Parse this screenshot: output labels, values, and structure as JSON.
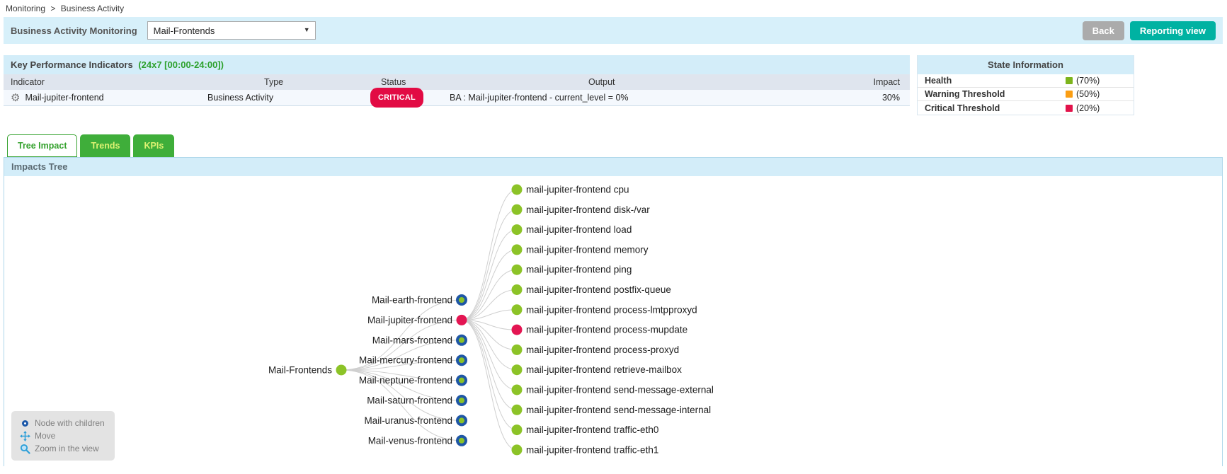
{
  "breadcrumb": {
    "item1": "Monitoring",
    "separator": ">",
    "item2": "Business Activity"
  },
  "toolbar": {
    "title": "Business Activity Monitoring",
    "selected_ba": "Mail-Frontends",
    "back_label": "Back",
    "reporting_label": "Reporting view"
  },
  "kpi_panel": {
    "title": "Key Performance Indicators",
    "period": "(24x7 [00:00-24:00])",
    "columns": [
      "Indicator",
      "Type",
      "Status",
      "Output",
      "Impact"
    ],
    "rows": [
      {
        "indicator": "Mail-jupiter-frontend",
        "type": "Business Activity",
        "status": "CRITICAL",
        "output": "BA : Mail-jupiter-frontend - current_level = 0%",
        "impact": "30%"
      }
    ]
  },
  "state_panel": {
    "title": "State Information",
    "rows": [
      {
        "label": "Health",
        "value": "(70%)",
        "color": "#7db41c"
      },
      {
        "label": "Warning Threshold",
        "value": "(50%)",
        "color": "#fb9e13"
      },
      {
        "label": "Critical Threshold",
        "value": "(20%)",
        "color": "#e2134b"
      }
    ]
  },
  "tabs": [
    {
      "label": "Tree Impact",
      "active": true
    },
    {
      "label": "Trends",
      "active": false
    },
    {
      "label": "KPIs",
      "active": false
    }
  ],
  "impacts_tree": {
    "title": "Impacts Tree",
    "status_colors": {
      "ok": "#8cc327",
      "critical": "#e31552",
      "ring": "#1f57a5"
    },
    "root": {
      "label": "Mail-Frontends",
      "status": "ok"
    },
    "children": [
      {
        "label": "Mail-earth-frontend",
        "status": "ok",
        "has_children": true,
        "expanded": false
      },
      {
        "label": "Mail-jupiter-frontend",
        "status": "critical",
        "has_children": true,
        "expanded": true
      },
      {
        "label": "Mail-mars-frontend",
        "status": "ok",
        "has_children": true,
        "expanded": false
      },
      {
        "label": "Mail-mercury-frontend",
        "status": "ok",
        "has_children": true,
        "expanded": false
      },
      {
        "label": "Mail-neptune-frontend",
        "status": "ok",
        "has_children": true,
        "expanded": false
      },
      {
        "label": "Mail-saturn-frontend",
        "status": "ok",
        "has_children": true,
        "expanded": false
      },
      {
        "label": "Mail-uranus-frontend",
        "status": "ok",
        "has_children": true,
        "expanded": false
      },
      {
        "label": "Mail-venus-frontend",
        "status": "ok",
        "has_children": true,
        "expanded": false
      }
    ],
    "expanded_leaves": [
      {
        "label": "mail-jupiter-frontend cpu",
        "status": "ok"
      },
      {
        "label": "mail-jupiter-frontend disk-/var",
        "status": "ok"
      },
      {
        "label": "mail-jupiter-frontend load",
        "status": "ok"
      },
      {
        "label": "mail-jupiter-frontend memory",
        "status": "ok"
      },
      {
        "label": "mail-jupiter-frontend ping",
        "status": "ok"
      },
      {
        "label": "mail-jupiter-frontend postfix-queue",
        "status": "ok"
      },
      {
        "label": "mail-jupiter-frontend process-lmtpproxyd",
        "status": "ok"
      },
      {
        "label": "mail-jupiter-frontend process-mupdate",
        "status": "critical"
      },
      {
        "label": "mail-jupiter-frontend process-proxyd",
        "status": "ok"
      },
      {
        "label": "mail-jupiter-frontend retrieve-mailbox",
        "status": "ok"
      },
      {
        "label": "mail-jupiter-frontend send-message-external",
        "status": "ok"
      },
      {
        "label": "mail-jupiter-frontend send-message-internal",
        "status": "ok"
      },
      {
        "label": "mail-jupiter-frontend traffic-eth0",
        "status": "ok"
      },
      {
        "label": "mail-jupiter-frontend traffic-eth1",
        "status": "ok"
      }
    ],
    "legend": [
      {
        "icon": "node-with-children-icon",
        "label": "Node with children"
      },
      {
        "icon": "move-icon",
        "label": "Move"
      },
      {
        "icon": "zoom-icon",
        "label": "Zoom in the view"
      }
    ]
  },
  "colors": {
    "toolbar_bg": "#d7f0fa",
    "panel_header_bg": "#d3edf9",
    "table_header_bg": "#dfe5ee",
    "row_bg": "#f4f8fd",
    "accent_green": "#36a22f",
    "tab_inactive_text": "#ddf272",
    "critical_badge": "#e20b44",
    "button_back": "#ababab",
    "button_reporting": "#00b2a2",
    "kpi_period_green": "#2da12d",
    "link_gray": "#cfcfcf"
  }
}
